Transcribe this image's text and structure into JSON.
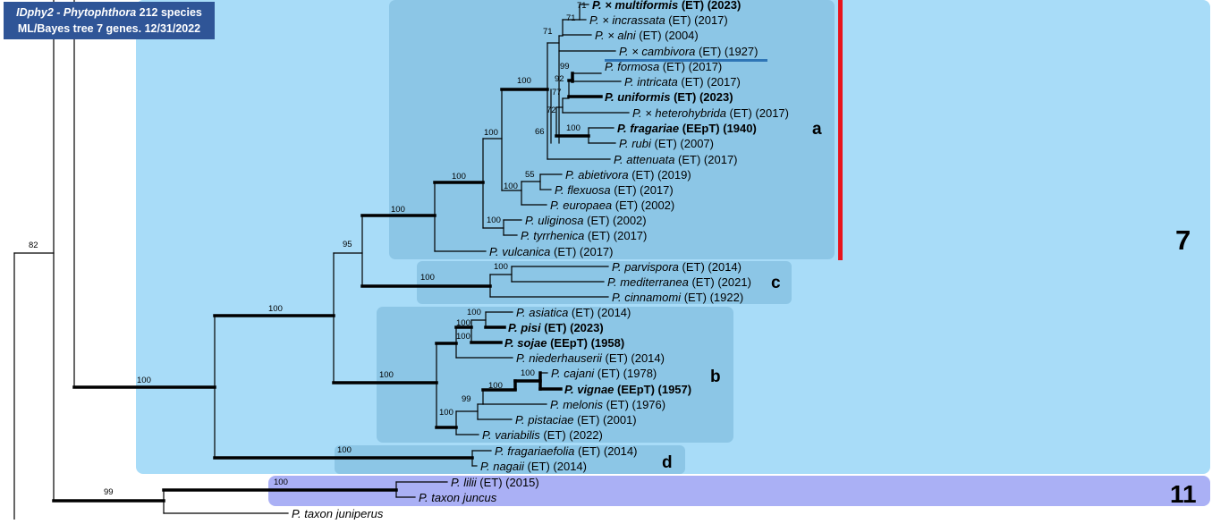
{
  "header": {
    "genus": "IDphy2 - Phytophthora",
    "species_count": "212 species",
    "subtitle": "ML/Bayes tree 7 genes. 12/31/2022"
  },
  "colors": {
    "clade7_bg": "#a8dcf8",
    "subclade_bg": "#8cc6e6",
    "clade11_bg": "#aab0f5",
    "title_bg": "#2f5597",
    "accent_red": "#e8141c",
    "underline_blue": "#2e75b6",
    "branch": "#000000"
  },
  "clades": {
    "clade7": "7",
    "clade11": "11",
    "sub_a": "a",
    "sub_b": "b",
    "sub_c": "c",
    "sub_d": "d"
  },
  "taxa": [
    {
      "genus": "P.",
      "epithet": "× multiformis",
      "meta": "(ET) (2023)",
      "bold": true
    },
    {
      "genus": "P.",
      "epithet": "× incrassata",
      "meta": "(ET) (2017)",
      "bold": false
    },
    {
      "genus": "P.",
      "epithet": "× alni",
      "meta": "(ET) (2004)",
      "bold": false
    },
    {
      "genus": "P.",
      "epithet": "× cambivora",
      "meta": "(ET) (1927)",
      "bold": false
    },
    {
      "genus": "P.",
      "epithet": "formosa",
      "meta": "(ET) (2017)",
      "bold": false
    },
    {
      "genus": "P.",
      "epithet": "intricata",
      "meta": "(ET) (2017)",
      "bold": false
    },
    {
      "genus": "P.",
      "epithet": "uniformis",
      "meta": "(ET) (2023)",
      "bold": true
    },
    {
      "genus": "P.",
      "epithet": "× heterohybrida",
      "meta": "(ET) (2017)",
      "bold": false
    },
    {
      "genus": "P.",
      "epithet": "fragariae",
      "meta": "(EEpT) (1940)",
      "bold": true
    },
    {
      "genus": "P.",
      "epithet": "rubi",
      "meta": "(ET) (2007)",
      "bold": false
    },
    {
      "genus": "P.",
      "epithet": "attenuata",
      "meta": "(ET) (2017)",
      "bold": false
    },
    {
      "genus": "P.",
      "epithet": "abietivora",
      "meta": "(ET) (2019)",
      "bold": false
    },
    {
      "genus": "P.",
      "epithet": "flexuosa",
      "meta": "(ET) (2017)",
      "bold": false
    },
    {
      "genus": "P.",
      "epithet": "europaea",
      "meta": " (ET) (2002)",
      "bold": false
    },
    {
      "genus": "P.",
      "epithet": "uliginosa",
      "meta": "(ET) (2002)",
      "bold": false
    },
    {
      "genus": "P.",
      "epithet": "tyrrhenica",
      "meta": "(ET) (2017)",
      "bold": false
    },
    {
      "genus": "P.",
      "epithet": "vulcanica",
      "meta": "(ET) (2017)",
      "bold": false
    },
    {
      "genus": "P.",
      "epithet": "parvispora",
      "meta": "(ET) (2014)",
      "bold": false
    },
    {
      "genus": "P.",
      "epithet": "mediterranea",
      "meta": "(ET) (2021)",
      "bold": false
    },
    {
      "genus": "P.",
      "epithet": "cinnamomi",
      "meta": "(ET) (1922)",
      "bold": false
    },
    {
      "genus": "P.",
      "epithet": "asiatica",
      "meta": "(ET) (2014)",
      "bold": false
    },
    {
      "genus": "P.",
      "epithet": "pisi",
      "meta": "(ET) (2023)",
      "bold": true
    },
    {
      "genus": "P.",
      "epithet": "sojae",
      "meta": "(EEpT) (1958)",
      "bold": true
    },
    {
      "genus": "P.",
      "epithet": "niederhauserii",
      "meta": "(ET) (2014)",
      "bold": false
    },
    {
      "genus": "P.",
      "epithet": "cajani",
      "meta": "(ET) (1978)",
      "bold": false
    },
    {
      "genus": "P.",
      "epithet": "vignae",
      "meta": "(EEpT) (1957)",
      "bold": true
    },
    {
      "genus": "P.",
      "epithet": "melonis",
      "meta": "(ET) (1976)",
      "bold": false
    },
    {
      "genus": "P.",
      "epithet": "pistaciae",
      "meta": "(ET) (2001)",
      "bold": false
    },
    {
      "genus": "P.",
      "epithet": "variabilis",
      "meta": "(ET) (2022)",
      "bold": false
    },
    {
      "genus": "P.",
      "epithet": "fragariaefolia",
      "meta": "(ET) (2014)",
      "bold": false
    },
    {
      "genus": "P.",
      "epithet": "nagaii",
      "meta": "(ET) (2014)",
      "bold": false
    },
    {
      "genus": "P.",
      "epithet": "lilii",
      "meta": "(ET) (2015)",
      "bold": false
    },
    {
      "genus": "P.",
      "epithet": "taxon juncus",
      "meta": "",
      "bold": false
    },
    {
      "genus": "P.",
      "epithet": "taxon juniperus",
      "meta": "",
      "bold": false
    }
  ],
  "support": {
    "n_multi_incr": "71",
    "n_alni": "71",
    "n_cambivora": "71",
    "n_formosa": "99",
    "n_intricata": "92",
    "n_77": "77",
    "n_72": "72",
    "n_66": "66",
    "n_fragariae": "100",
    "n_100a": "100",
    "n_abiet": "55",
    "n_flex": "100",
    "n_abiet_top": "100",
    "n_ulig": "100",
    "n_a_root": "100",
    "n_ac": "100",
    "n_95": "95",
    "n_c": "100",
    "n_c_inner": "100",
    "n_abcd": "100",
    "n_asiatica": "100",
    "n_pisi": "100",
    "n_sojae": "100",
    "n_b_root": "100",
    "n_b_inner": "100",
    "n_cajani": "100",
    "n_cajvig": "100",
    "n_melonis": "99",
    "n_pistac": "100",
    "n_d": "100",
    "n_clade7": "100",
    "n_82": "82",
    "n_99": "99",
    "n_11": "100"
  }
}
